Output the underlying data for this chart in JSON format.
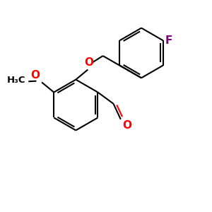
{
  "background": "#ffffff",
  "bond_color": "#000000",
  "oxygen_color": "#ff0000",
  "fluorine_color": "#800080",
  "line_width": 1.5,
  "font_size": 9.5,
  "fig_size": [
    3.0,
    3.0
  ],
  "dpi": 100,
  "xlim": [
    0,
    10
  ],
  "ylim": [
    0,
    10
  ]
}
